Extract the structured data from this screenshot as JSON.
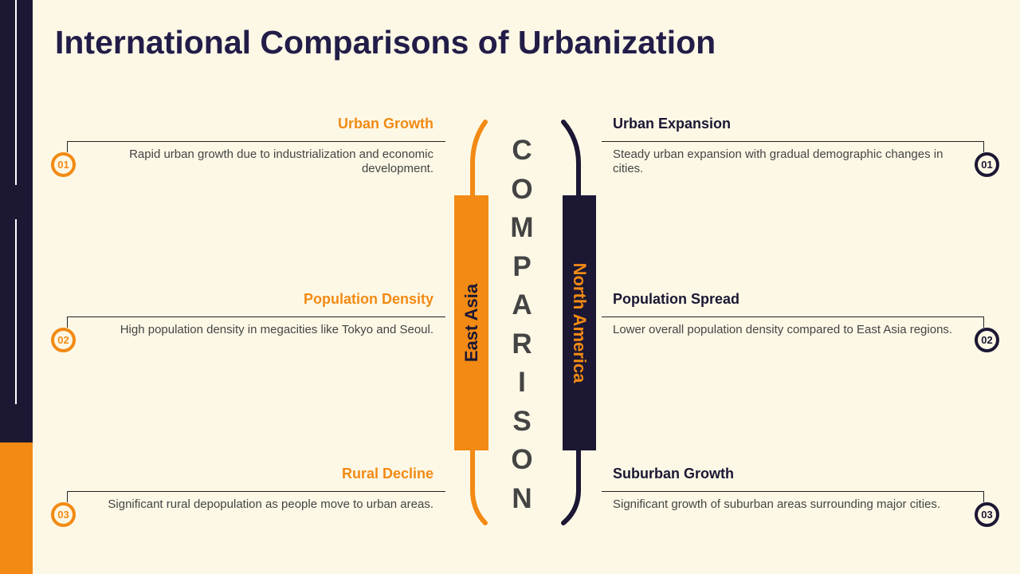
{
  "title": "International Comparisons of Urbanization",
  "center_word": [
    "C",
    "O",
    "M",
    "P",
    "A",
    "R",
    "I",
    "S",
    "O",
    "N"
  ],
  "left": {
    "label": "East Asia",
    "items": [
      {
        "num": "01",
        "title": "Urban Growth",
        "desc": "Rapid urban growth due to industrialization and economic development."
      },
      {
        "num": "02",
        "title": "Population Density",
        "desc": "High population density in megacities like Tokyo and Seoul."
      },
      {
        "num": "03",
        "title": "Rural Decline",
        "desc": "Significant rural depopulation as people move to urban areas."
      }
    ]
  },
  "right": {
    "label": "North America",
    "items": [
      {
        "num": "01",
        "title": "Urban Expansion",
        "desc": "Steady urban expansion with gradual demographic changes in cities."
      },
      {
        "num": "02",
        "title": "Population Spread",
        "desc": "Lower overall population density compared to East Asia regions."
      },
      {
        "num": "03",
        "title": "Suburban Growth",
        "desc": "Significant growth of suburban areas surrounding major cities."
      }
    ]
  },
  "colors": {
    "orange": "#f28a14",
    "navy": "#1c1733",
    "bg": "#fdf8e6"
  }
}
